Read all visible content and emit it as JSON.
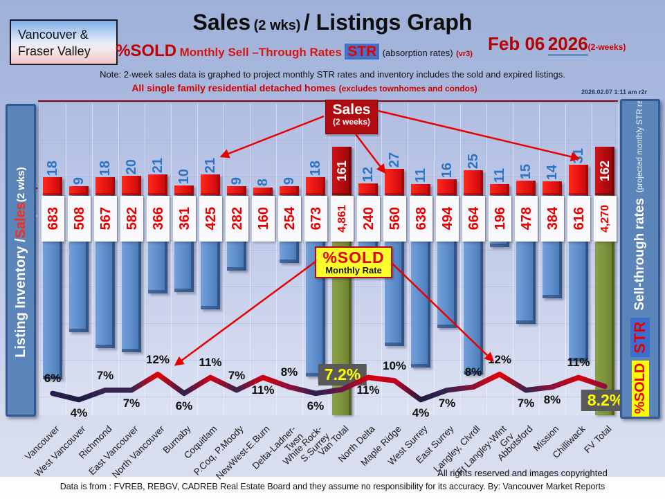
{
  "header": {
    "region_line1": "Vancouver &",
    "region_line2": "Fraser Valley",
    "title_sales": "Sales",
    "title_wks": "(2 wks)",
    "title_rest": "/ Listings Graph",
    "pct_sold": "%SOLD",
    "sell_through": "Monthly Sell –Through Rates",
    "str_badge": "STR",
    "absorption": "(absorption rates)",
    "version": "(vr3)",
    "date_main": "Feb 06",
    "date_year": "2026",
    "date_suffix": "(2-weeks)",
    "note": "Note: 2-week sales data is graphed to project monthly STR rates and inventory includes the sold and expired listings.",
    "subtitle": "All single family residential detached homes",
    "subtitle_paren": "(excludes townhomes and condos)",
    "timestamp": "2026.02.07 1:11 am r2r"
  },
  "left_axis": {
    "part1": "Listing Inventory / ",
    "part2": "Sales",
    "part3": " (2  wks)"
  },
  "right_axis": {
    "sold_badge": "%SOLD",
    "str_badge": "STR",
    "label": "Sell-through rates",
    "sublabel": "(projected monthly STR rates)"
  },
  "callouts": {
    "sales_line1": "Sales",
    "sales_line2": "(2 weeks)",
    "sold_line1": "%SOLD",
    "sold_line2": "Monthly Rate"
  },
  "footer": {
    "rights": "All rights reserved and  images copyrighted",
    "source": "Data is from : FVREB, REBGV, CADREB Real Estate Board and they assume no responsibility for its accuracy. By: Vancouver Market Reports"
  },
  "chart_data": {
    "type": "bar",
    "title": "Sales (2 wks) / Listings Graph — Feb 06 2026 (2-weeks)",
    "xlabel": "",
    "ylabel_left": "Listing Inventory / Sales (2 wks)",
    "ylabel_right": "Sell-through rates (projected monthly STR rates)",
    "legend_position": "none",
    "grid": true,
    "categories": [
      "Vancouver",
      "West Vancouver",
      "Richmond",
      "East Vancouver",
      "North Vancouver",
      "Burnaby",
      "Coquitlam",
      "P.Coq, P.Moody",
      "NewWest-E.Burn",
      "Delta-Ladner-Twsn",
      "White Rock-S.Surrey",
      "Van Total",
      "North Delta",
      "Maple Ridge",
      "West Surrey",
      "East Surrey",
      "Langley, Clvrdl",
      "Ft Langley-Wlnt Grv",
      "Abbotsford",
      "Mission",
      "Chilliwack",
      "FV Total"
    ],
    "series": [
      {
        "name": "Sales (2 weeks)",
        "values": [
          18,
          9,
          18,
          20,
          21,
          10,
          21,
          9,
          8,
          9,
          18,
          161,
          12,
          27,
          11,
          16,
          25,
          11,
          15,
          14,
          31,
          162
        ]
      },
      {
        "name": "Listing Inventory",
        "values": [
          683,
          508,
          567,
          582,
          366,
          361,
          425,
          282,
          160,
          254,
          673,
          4861,
          240,
          560,
          638,
          494,
          664,
          196,
          478,
          384,
          616,
          4270
        ]
      },
      {
        "name": "%SOLD Monthly Rate (%)",
        "values": [
          6,
          4,
          7,
          7,
          12,
          6,
          11,
          7,
          11,
          8,
          6,
          7.2,
          11,
          10,
          4,
          7,
          8,
          12,
          7,
          8,
          11,
          8.2
        ]
      }
    ],
    "inventory_labels": [
      "683",
      "508",
      "567",
      "582",
      "366",
      "361",
      "425",
      "282",
      "160",
      "254",
      "673",
      "4,861",
      "240",
      "560",
      "638",
      "494",
      "664",
      "196",
      "478",
      "384",
      "616",
      "4,270"
    ],
    "sales_labels": [
      "18",
      "9",
      "18",
      "20",
      "21",
      "10",
      "21",
      "9",
      "8",
      "9",
      "18",
      "161",
      "12",
      "27",
      "11",
      "16",
      "25",
      "11",
      "15",
      "14",
      "31",
      "162"
    ],
    "pct_labels": [
      "6%",
      "4%",
      "7%",
      "7%",
      "12%",
      "6%",
      "11%",
      "7%",
      "11%",
      "8%",
      "6%",
      "7.2%",
      "11%",
      "10%",
      "4%",
      "7%",
      "8%",
      "12%",
      "7%",
      "8%",
      "11%",
      "8.2%"
    ],
    "pct_pos": [
      "a",
      "b",
      "a",
      "b",
      "a",
      "b",
      "a",
      "a",
      "b",
      "a",
      "b",
      "x",
      "b",
      "a",
      "b",
      "b",
      "a",
      "a",
      "b",
      "b",
      "a",
      "x"
    ],
    "total_indices": [
      11,
      21
    ],
    "colors": {
      "sales_bar": "#e31212",
      "total_sales_bar": "#b00b10",
      "inventory_bar": "#5b8bc9",
      "total_inventory_bar": "#7a8f3a",
      "line_high": "#e80000",
      "line_low": "#1c1c42",
      "pct_box_bg": "#595959",
      "pct_box_text": "#ffff00",
      "inventory_label_text": "#e80000",
      "sales_label_text": "#2e74c0"
    }
  }
}
